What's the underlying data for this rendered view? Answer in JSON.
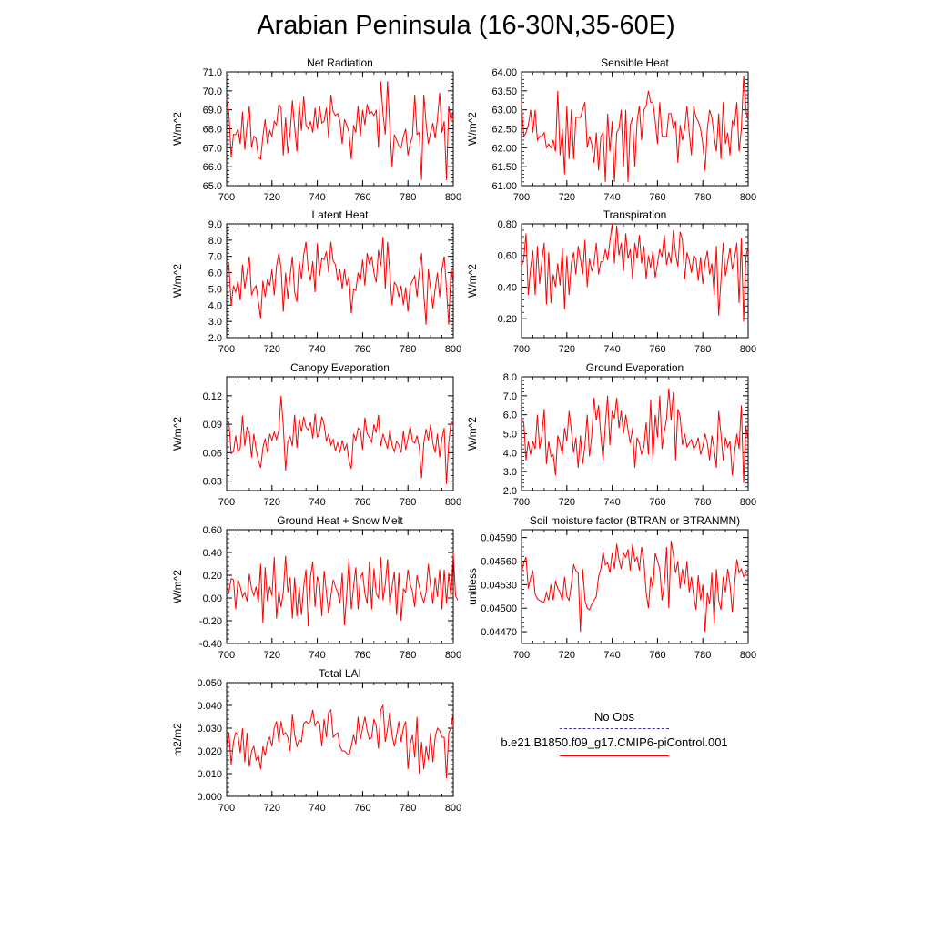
{
  "title": "Arabian Peninsula (16-30N,35-60E)",
  "legend": {
    "obs_label": "No Obs",
    "obs_color": "#3333aa",
    "model_label": "b.e21.B1850.f09_g17.CMIP6-piControl.001",
    "model_color": "#ff0000"
  },
  "chart_data": [
    {
      "type": "line",
      "title": "Net Radiation",
      "ylabel": "W/m^2",
      "xlabel": "",
      "xlim": [
        700,
        800
      ],
      "ylim": [
        65,
        71
      ],
      "xticks": [
        700,
        720,
        740,
        760,
        780,
        800
      ],
      "yticks": [
        65,
        66,
        67,
        68,
        69,
        70,
        71
      ],
      "ytick_decimals": 1,
      "x_start": 700,
      "x_step": 1,
      "values": [
        69.6,
        68.8,
        66.5,
        67.7,
        67.7,
        68.0,
        67.2,
        68.9,
        66.9,
        68.2,
        69.2,
        67.0,
        67.6,
        67.5,
        66.5,
        66.4,
        67.6,
        68.5,
        67.2,
        67.9,
        67.6,
        68.4,
        68.2,
        69.3,
        69.1,
        66.6,
        68.6,
        66.7,
        67.8,
        69.5,
        68.1,
        66.8,
        69.4,
        67.9,
        69.7,
        68.2,
        68.0,
        68.4,
        67.8,
        69.1,
        68.0,
        69.2,
        68.3,
        68.4,
        69.1,
        67.5,
        69.8,
        68.9,
        68.7,
        68.8,
        68.4,
        67.2,
        68.5,
        68.2,
        67.8,
        66.4,
        68.2,
        67.8,
        69.2,
        67.6,
        69.0,
        68.2,
        69.3,
        68.8,
        68.9,
        68.7,
        69.0,
        67.0,
        70.5,
        68.8,
        67.7,
        70.5,
        68.1,
        66.0,
        67.7,
        67.4,
        67.1,
        67.0,
        67.6,
        68.0,
        66.6,
        67.2,
        67.6,
        69.8,
        67.7,
        67.8,
        65.3,
        69.8,
        68.3,
        67.2,
        67.8,
        68.3,
        67.5,
        68.5,
        69.9,
        67.8,
        68.4,
        65.3,
        69.2,
        68.4,
        69.0
      ]
    },
    {
      "type": "line",
      "title": "Sensible Heat",
      "ylabel": "W/m^2",
      "xlabel": "",
      "xlim": [
        700,
        800
      ],
      "ylim": [
        61,
        64
      ],
      "xticks": [
        700,
        720,
        740,
        760,
        780,
        800
      ],
      "yticks": [
        61,
        61.5,
        62,
        62.5,
        63,
        63.5,
        64
      ],
      "ytick_decimals": 2,
      "x_start": 700,
      "x_step": 1,
      "values": [
        63.2,
        62.3,
        62.4,
        62.6,
        63.0,
        62.4,
        63.0,
        62.2,
        62.3,
        62.3,
        62.4,
        62.0,
        62.1,
        62.0,
        62.2,
        61.9,
        63.5,
        61.8,
        62.5,
        61.3,
        63.1,
        61.7,
        63.0,
        61.7,
        62.8,
        62.8,
        62.8,
        63.0,
        63.2,
        62.0,
        62.3,
        62.1,
        61.6,
        62.4,
        61.4,
        62.3,
        62.4,
        61.1,
        62.9,
        61.9,
        62.7,
        61.1,
        62.4,
        62.5,
        63.0,
        61.5,
        63.0,
        61.1,
        62.6,
        62.8,
        61.5,
        62.7,
        63.1,
        62.2,
        63.0,
        63.1,
        63.5,
        63.2,
        63.2,
        62.7,
        62.1,
        63.2,
        62.3,
        62.3,
        62.3,
        62.9,
        62.9,
        62.5,
        62.7,
        61.6,
        62.6,
        62.2,
        62.5,
        63.1,
        62.4,
        61.8,
        63.1,
        62.8,
        62.7,
        62.5,
        62.1,
        61.4,
        62.5,
        63.0,
        62.8,
        62.3,
        61.9,
        62.9,
        61.7,
        63.2,
        62.1,
        62.4,
        61.8,
        62.7,
        62.6,
        63.2,
        61.9,
        62.5,
        63.9,
        63.0,
        62.7
      ]
    },
    {
      "type": "line",
      "title": "Latent Heat",
      "ylabel": "W/m^2",
      "xlabel": "",
      "xlim": [
        700,
        800
      ],
      "ylim": [
        2,
        9
      ],
      "xticks": [
        700,
        720,
        740,
        760,
        780,
        800
      ],
      "yticks": [
        2,
        3,
        4,
        5,
        6,
        7,
        8,
        9
      ],
      "ytick_decimals": 1,
      "x_start": 700,
      "x_step": 1,
      "values": [
        6.3,
        6.5,
        4.0,
        5.2,
        4.8,
        5.5,
        4.3,
        6.5,
        5.0,
        6.0,
        7.0,
        4.6,
        5.0,
        5.2,
        4.2,
        3.2,
        5.5,
        4.5,
        5.6,
        5.2,
        6.2,
        4.6,
        6.4,
        7.2,
        6.3,
        3.6,
        6.0,
        4.4,
        5.8,
        7.0,
        4.8,
        4.2,
        6.7,
        5.6,
        7.1,
        7.9,
        6.2,
        5.5,
        6.7,
        4.8,
        7.8,
        5.8,
        6.9,
        6.8,
        7.3,
        6.0,
        7.9,
        6.7,
        6.5,
        5.5,
        6.2,
        5.0,
        6.2,
        5.2,
        5.8,
        3.5,
        5.0,
        4.9,
        6.0,
        5.5,
        6.8,
        5.2,
        7.2,
        6.5,
        7.0,
        6.0,
        5.4,
        7.4,
        6.4,
        8.2,
        5.0,
        7.9,
        6.0,
        4.0,
        5.4,
        5.2,
        4.5,
        5.2,
        4.0,
        5.1,
        3.6,
        5.2,
        5.5,
        5.8,
        4.5,
        6.0,
        7.2,
        4.7,
        2.8,
        6.2,
        5.0,
        3.8,
        5.0,
        6.0,
        4.5,
        6.2,
        7.0,
        5.0,
        2.8,
        6.3,
        5.3
      ]
    },
    {
      "type": "line",
      "title": "Transpiration",
      "ylabel": "W/m^2",
      "xlabel": "",
      "xlim": [
        700,
        800
      ],
      "ylim": [
        0.08,
        0.8
      ],
      "xticks": [
        700,
        720,
        740,
        760,
        780,
        800
      ],
      "yticks": [
        0.2,
        0.4,
        0.6,
        0.8
      ],
      "ytick_decimals": 2,
      "x_start": 700,
      "x_step": 1,
      "values": [
        0.53,
        0.58,
        0.74,
        0.35,
        0.52,
        0.63,
        0.35,
        0.66,
        0.42,
        0.57,
        0.68,
        0.29,
        0.62,
        0.3,
        0.48,
        0.4,
        0.55,
        0.41,
        0.65,
        0.26,
        0.6,
        0.35,
        0.55,
        0.62,
        0.48,
        0.66,
        0.58,
        0.48,
        0.7,
        0.4,
        0.58,
        0.5,
        0.55,
        0.68,
        0.48,
        0.56,
        0.56,
        0.64,
        0.57,
        0.69,
        0.8,
        0.55,
        0.79,
        0.6,
        0.68,
        0.5,
        0.74,
        0.58,
        0.64,
        0.45,
        0.68,
        0.58,
        0.73,
        0.55,
        0.66,
        0.45,
        0.6,
        0.52,
        0.63,
        0.46,
        0.55,
        0.64,
        0.59,
        0.73,
        0.54,
        0.62,
        0.55,
        0.76,
        0.61,
        0.53,
        0.75,
        0.7,
        0.45,
        0.62,
        0.57,
        0.49,
        0.6,
        0.58,
        0.44,
        0.59,
        0.42,
        0.56,
        0.63,
        0.48,
        0.55,
        0.35,
        0.66,
        0.22,
        0.44,
        0.68,
        0.47,
        0.56,
        0.65,
        0.51,
        0.58,
        0.68,
        0.3,
        0.71,
        0.18,
        0.59,
        0.66
      ]
    },
    {
      "type": "line",
      "title": "Canopy Evaporation",
      "ylabel": "W/m^2",
      "xlabel": "",
      "xlim": [
        700,
        800
      ],
      "ylim": [
        0.02,
        0.14
      ],
      "xticks": [
        700,
        720,
        740,
        760,
        780,
        800
      ],
      "yticks": [
        0.03,
        0.06,
        0.09,
        0.12
      ],
      "ytick_decimals": 2,
      "x_start": 700,
      "x_step": 1,
      "values": [
        0.093,
        0.092,
        0.059,
        0.061,
        0.078,
        0.06,
        0.065,
        0.099,
        0.067,
        0.087,
        0.081,
        0.055,
        0.08,
        0.063,
        0.052,
        0.044,
        0.065,
        0.075,
        0.06,
        0.08,
        0.073,
        0.082,
        0.074,
        0.083,
        0.12,
        0.088,
        0.041,
        0.072,
        0.077,
        0.067,
        0.1,
        0.065,
        0.096,
        0.082,
        0.098,
        0.087,
        0.084,
        0.092,
        0.075,
        0.101,
        0.076,
        0.082,
        0.098,
        0.09,
        0.072,
        0.08,
        0.068,
        0.074,
        0.062,
        0.071,
        0.06,
        0.073,
        0.063,
        0.069,
        0.051,
        0.043,
        0.08,
        0.073,
        0.086,
        0.084,
        0.063,
        0.097,
        0.08,
        0.076,
        0.071,
        0.09,
        0.081,
        0.1,
        0.067,
        0.08,
        0.072,
        0.064,
        0.084,
        0.068,
        0.061,
        0.072,
        0.068,
        0.06,
        0.083,
        0.063,
        0.075,
        0.088,
        0.072,
        0.07,
        0.078,
        0.066,
        0.033,
        0.07,
        0.085,
        0.073,
        0.09,
        0.07,
        0.06,
        0.08,
        0.055,
        0.075,
        0.086,
        0.027,
        0.07,
        0.093,
        0.09
      ]
    },
    {
      "type": "line",
      "title": "Ground Evaporation",
      "ylabel": "W/m^2",
      "xlabel": "",
      "xlim": [
        700,
        800
      ],
      "ylim": [
        2,
        8
      ],
      "xticks": [
        700,
        720,
        740,
        760,
        780,
        800
      ],
      "yticks": [
        2,
        3,
        4,
        5,
        6,
        7,
        8
      ],
      "ytick_decimals": 1,
      "x_start": 700,
      "x_step": 1,
      "values": [
        5.7,
        5.6,
        3.6,
        4.6,
        3.9,
        4.6,
        4.2,
        6.0,
        4.2,
        4.9,
        6.3,
        3.4,
        4.6,
        3.8,
        3.9,
        2.8,
        4.9,
        4.5,
        3.9,
        5.3,
        4.6,
        6.2,
        5.2,
        4.0,
        4.8,
        3.2,
        4.9,
        3.4,
        4.4,
        6.0,
        3.8,
        4.9,
        6.9,
        5.7,
        6.5,
        4.9,
        3.6,
        5.5,
        7.0,
        4.4,
        6.2,
        5.8,
        6.9,
        5.3,
        6.2,
        5.0,
        6.0,
        5.2,
        4.5,
        5.3,
        3.2,
        4.8,
        4.5,
        3.9,
        4.3,
        5.6,
        3.9,
        6.8,
        3.6,
        6.0,
        4.8,
        7.0,
        4.2,
        5.1,
        5.8,
        7.4,
        5.7,
        7.2,
        3.6,
        6.3,
        5.9,
        4.4,
        5.0,
        4.3,
        4.5,
        4.7,
        4.2,
        4.4,
        4.8,
        3.9,
        4.3,
        5.0,
        4.5,
        3.6,
        4.9,
        4.2,
        3.2,
        6.2,
        5.0,
        3.6,
        4.8,
        4.3,
        4.6,
        2.8,
        4.0,
        5.0,
        4.2,
        6.5,
        2.4,
        5.4,
        4.6
      ]
    },
    {
      "type": "line",
      "title": "Ground Heat + Snow Melt",
      "ylabel": "W/m^2",
      "xlabel": "",
      "xlim": [
        700,
        800
      ],
      "ylim": [
        -0.4,
        0.6
      ],
      "xticks": [
        700,
        720,
        740,
        760,
        780,
        800
      ],
      "yticks": [
        -0.4,
        -0.2,
        0,
        0.2,
        0.4,
        0.6
      ],
      "ytick_decimals": 2,
      "x_start": 700,
      "x_step": 1,
      "values": [
        0.1,
        0.05,
        0.17,
        0.16,
        -0.1,
        0.16,
        0.1,
        0.01,
        0.05,
        -0.03,
        0.21,
        0.08,
        0.02,
        0.1,
        -0.04,
        0.3,
        -0.22,
        0.27,
        -0.03,
        0.1,
        0.02,
        0.36,
        -0.18,
        0.06,
        -0.08,
        0.05,
        0.37,
        0.05,
        0.18,
        -0.18,
        0.18,
        -0.16,
        0.1,
        -0.15,
        0.1,
        0.25,
        -0.25,
        0.19,
        0.32,
        -0.08,
        0.19,
        0.12,
        -0.16,
        0.24,
        0.05,
        -0.14,
        0.02,
        0.16,
        0.1,
        0.05,
        -0.05,
        0.22,
        -0.24,
        0.04,
        0.35,
        -0.1,
        0.1,
        0.27,
        -0.1,
        0.18,
        0.22,
        0.04,
        -0.05,
        0.32,
        -0.1,
        0.26,
        0.04,
        0.0,
        0.36,
        -0.02,
        0.12,
        0.34,
        -0.06,
        0.1,
        0.23,
        -0.15,
        0.22,
        -0.2,
        0.08,
        0.05,
        0.25,
        0.12,
        0.06,
        -0.08,
        0.2,
        0.1,
        0.02,
        -0.04,
        0.05,
        0.3,
        0.1,
        -0.05,
        0.18,
        0.01,
        0.25,
        -0.1,
        0.25,
        -0.05,
        0.22,
        0.0,
        0.4,
        0.02,
        -0.02
      ]
    },
    {
      "type": "line",
      "title": "Soil moisture factor (BTRAN or BTRANMN)",
      "ylabel": "unitless",
      "xlabel": "",
      "xlim": [
        700,
        800
      ],
      "ylim": [
        0.04455,
        0.046
      ],
      "xticks": [
        700,
        720,
        740,
        760,
        780,
        800
      ],
      "yticks": [
        0.0447,
        0.045,
        0.0453,
        0.0456,
        0.0459
      ],
      "ytick_decimals": 5,
      "x_start": 700,
      "x_step": 1,
      "values": [
        0.04545,
        0.04558,
        0.04565,
        0.04525,
        0.04538,
        0.04548,
        0.04518,
        0.04512,
        0.0451,
        0.04508,
        0.04508,
        0.0452,
        0.0451,
        0.0453,
        0.0451,
        0.04535,
        0.04525,
        0.0452,
        0.0451,
        0.0454,
        0.04515,
        0.0451,
        0.0453,
        0.04555,
        0.04548,
        0.04545,
        0.0447,
        0.0455,
        0.0451,
        0.045,
        0.04498,
        0.04505,
        0.0451,
        0.04515,
        0.0454,
        0.0455,
        0.04572,
        0.04555,
        0.04558,
        0.04545,
        0.0457,
        0.0455,
        0.04582,
        0.04562,
        0.0455,
        0.0457,
        0.04565,
        0.04575,
        0.04548,
        0.04582,
        0.0456,
        0.04565,
        0.04548,
        0.04578,
        0.0456,
        0.0452,
        0.045,
        0.0454,
        0.04525,
        0.0457,
        0.0456,
        0.0455,
        0.0451,
        0.0453,
        0.04578,
        0.045,
        0.04586,
        0.04568,
        0.04545,
        0.0456,
        0.04525,
        0.0455,
        0.0453,
        0.0456,
        0.0452,
        0.0454,
        0.04515,
        0.04498,
        0.04542,
        0.0451,
        0.0453,
        0.0447,
        0.0452,
        0.04505,
        0.04545,
        0.0448,
        0.0455,
        0.0451,
        0.04498,
        0.0454,
        0.0452,
        0.0455,
        0.0453,
        0.04495,
        0.0453,
        0.04562,
        0.04545,
        0.0455,
        0.0454,
        0.04545,
        0.04548
      ]
    },
    {
      "type": "line",
      "title": "Total LAI",
      "ylabel": "m2/m2",
      "xlabel": "",
      "xlim": [
        700,
        800
      ],
      "ylim": [
        0,
        0.05
      ],
      "xticks": [
        700,
        720,
        740,
        760,
        780,
        800
      ],
      "yticks": [
        0,
        0.01,
        0.02,
        0.03,
        0.04,
        0.05
      ],
      "ytick_decimals": 3,
      "x_start": 700,
      "x_step": 1,
      "values": [
        0.022,
        0.028,
        0.014,
        0.024,
        0.028,
        0.027,
        0.019,
        0.03,
        0.015,
        0.028,
        0.013,
        0.02,
        0.022,
        0.016,
        0.018,
        0.012,
        0.022,
        0.018,
        0.024,
        0.026,
        0.022,
        0.03,
        0.033,
        0.024,
        0.033,
        0.027,
        0.028,
        0.026,
        0.02,
        0.036,
        0.027,
        0.022,
        0.025,
        0.024,
        0.032,
        0.033,
        0.032,
        0.033,
        0.038,
        0.031,
        0.033,
        0.032,
        0.022,
        0.034,
        0.026,
        0.037,
        0.038,
        0.026,
        0.027,
        0.028,
        0.022,
        0.02,
        0.02,
        0.019,
        0.018,
        0.022,
        0.027,
        0.023,
        0.035,
        0.025,
        0.03,
        0.035,
        0.029,
        0.025,
        0.026,
        0.034,
        0.031,
        0.021,
        0.038,
        0.04,
        0.024,
        0.03,
        0.037,
        0.027,
        0.022,
        0.027,
        0.033,
        0.024,
        0.03,
        0.033,
        0.012,
        0.023,
        0.027,
        0.017,
        0.035,
        0.01,
        0.024,
        0.012,
        0.022,
        0.016,
        0.028,
        0.015,
        0.026,
        0.03,
        0.029,
        0.026,
        0.026,
        0.008,
        0.028,
        0.03,
        0.037
      ]
    }
  ]
}
